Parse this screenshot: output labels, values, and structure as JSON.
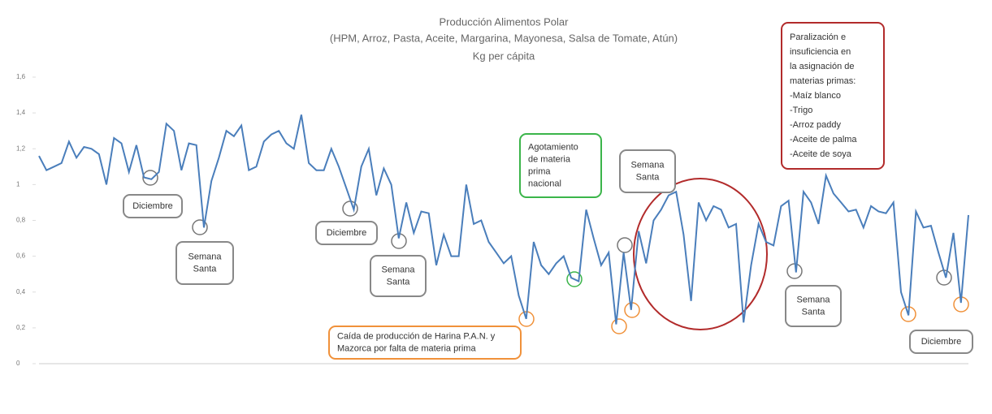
{
  "chart_data": {
    "type": "line",
    "title": "Producción Alimentos Polar",
    "subtitle": "(HPM, Arroz, Pasta, Aceite, Margarina, Mayonesa, Salsa de Tomate, Atún)",
    "unit": "Kg per cápita",
    "color": "#4a7ebb",
    "ylim": [
      0,
      1.6
    ],
    "yticks": [
      0,
      {
        "value": 0.2,
        "label": "0,2"
      },
      {
        "value": 0.4,
        "label": "0,4"
      },
      {
        "value": 0.6,
        "label": "0,6"
      },
      {
        "value": 0.8,
        "label": "0,8"
      },
      1,
      {
        "value": 1.2,
        "label": "1,2"
      },
      {
        "value": 1.4,
        "label": "1,4"
      },
      {
        "value": 1.6,
        "label": "1,6"
      }
    ],
    "values": [
      1.16,
      1.08,
      1.1,
      1.12,
      1.24,
      1.15,
      1.21,
      1.2,
      1.17,
      1.0,
      1.26,
      1.23,
      1.07,
      1.22,
      1.04,
      1.03,
      1.07,
      1.34,
      1.3,
      1.08,
      1.23,
      1.22,
      0.76,
      1.02,
      1.15,
      1.3,
      1.27,
      1.33,
      1.08,
      1.1,
      1.24,
      1.28,
      1.3,
      1.23,
      1.2,
      1.39,
      1.12,
      1.08,
      1.08,
      1.2,
      1.1,
      0.98,
      0.86,
      1.1,
      1.2,
      0.94,
      1.09,
      1.0,
      0.7,
      0.9,
      0.73,
      0.85,
      0.84,
      0.55,
      0.72,
      0.6,
      0.6,
      1.0,
      0.78,
      0.8,
      0.68,
      0.62,
      0.56,
      0.6,
      0.38,
      0.25,
      0.68,
      0.55,
      0.5,
      0.56,
      0.6,
      0.48,
      0.46,
      0.86,
      0.7,
      0.55,
      0.62,
      0.22,
      0.62,
      0.3,
      0.74,
      0.56,
      0.8,
      0.86,
      0.94,
      0.96,
      0.72,
      0.35,
      0.9,
      0.8,
      0.88,
      0.86,
      0.76,
      0.78,
      0.23,
      0.55,
      0.78,
      0.68,
      0.66,
      0.88,
      0.91,
      0.51,
      0.96,
      0.9,
      0.78,
      1.05,
      0.95,
      0.9,
      0.85,
      0.86,
      0.76,
      0.88,
      0.85,
      0.84,
      0.9,
      0.4,
      0.27,
      0.85,
      0.76,
      0.77,
      0.62,
      0.48,
      0.73,
      0.34,
      0.83
    ],
    "annotations": [
      {
        "lines": [
          "Diciembre"
        ]
      },
      {
        "lines": [
          "Semana",
          "Santa"
        ]
      },
      {
        "lines": [
          "Diciembre"
        ]
      },
      {
        "lines": [
          "Semana",
          "Santa"
        ]
      },
      {
        "lines": [
          "Caída de producción de Harina P.A.N. y",
          "Mazorca por falta de materia prima"
        ]
      },
      {
        "lines": [
          "Agotamiento",
          "de materia",
          "prima",
          "nacional"
        ]
      },
      {
        "lines": [
          "Semana",
          "Santa"
        ]
      },
      {
        "lines": [
          "Paralización e",
          "insuficiencia  en",
          "la asignación de",
          "materias primas:",
          "-Maíz blanco",
          "-Trigo",
          "-Arroz paddy",
          "-Aceite de palma",
          "-Aceite de soya"
        ]
      },
      {
        "lines": [
          "Semana",
          "Santa"
        ]
      },
      {
        "lines": [
          "Diciembre"
        ]
      }
    ]
  }
}
